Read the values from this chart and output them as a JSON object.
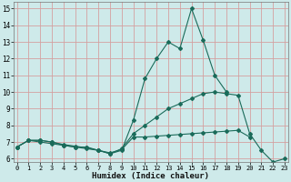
{
  "title": "",
  "xlabel": "Humidex (Indice chaleur)",
  "background_color": "#ceeaea",
  "grid_color": "#d4a0a0",
  "line_color": "#1a6b5a",
  "x": [
    0,
    1,
    2,
    3,
    4,
    5,
    6,
    7,
    8,
    9,
    10,
    11,
    12,
    13,
    14,
    15,
    16,
    17,
    18,
    19,
    20,
    21,
    22,
    23
  ],
  "line1": [
    6.7,
    7.1,
    7.1,
    7.0,
    6.8,
    6.7,
    6.7,
    6.5,
    6.3,
    6.5,
    8.3,
    10.8,
    12.0,
    13.0,
    12.6,
    15.0,
    13.1,
    11.0,
    10.0,
    null,
    null,
    null,
    null,
    null
  ],
  "line2": [
    6.7,
    7.1,
    7.1,
    7.0,
    6.85,
    6.75,
    6.65,
    6.5,
    6.35,
    6.55,
    7.3,
    7.3,
    7.35,
    7.4,
    7.45,
    7.5,
    7.55,
    7.6,
    7.65,
    7.7,
    7.3,
    null,
    null,
    null
  ],
  "line3": [
    6.7,
    7.1,
    7.0,
    6.9,
    6.8,
    6.7,
    6.6,
    6.5,
    6.3,
    6.6,
    7.5,
    8.0,
    8.5,
    9.0,
    9.3,
    9.6,
    9.9,
    10.0,
    9.9,
    9.8,
    7.5,
    6.5,
    5.8,
    6.0
  ],
  "ylim": [
    5.8,
    15.4
  ],
  "xlim": [
    -0.3,
    23.3
  ],
  "yticks": [
    6,
    7,
    8,
    9,
    10,
    11,
    12,
    13,
    14,
    15
  ],
  "xticks": [
    0,
    1,
    2,
    3,
    4,
    5,
    6,
    7,
    8,
    9,
    10,
    11,
    12,
    13,
    14,
    15,
    16,
    17,
    18,
    19,
    20,
    21,
    22,
    23
  ],
  "xtick_labels": [
    "0",
    "1",
    "2",
    "3",
    "4",
    "5",
    "6",
    "7",
    "8",
    "9",
    "10",
    "11",
    "12",
    "13",
    "14",
    "15",
    "16",
    "17",
    "18",
    "19",
    "20",
    "21",
    "22",
    "23"
  ]
}
